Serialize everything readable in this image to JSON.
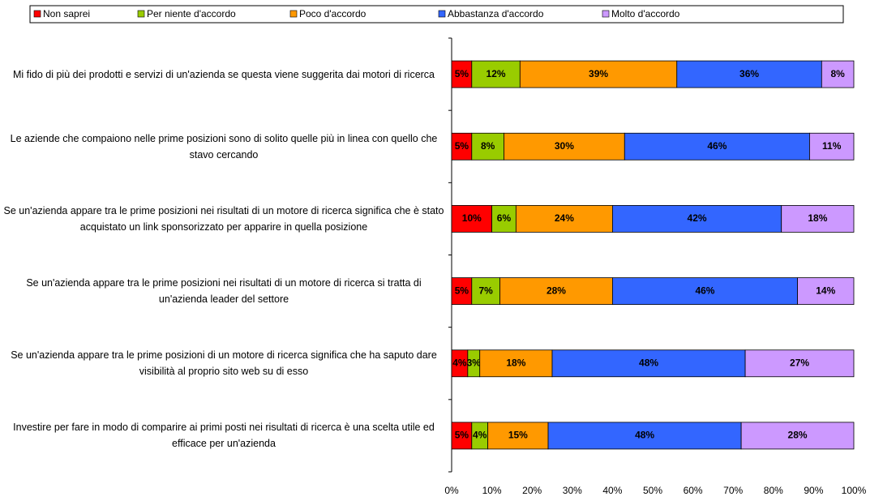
{
  "chart_data": {
    "type": "stacked-bar-horizontal",
    "categories": [
      "Mi fido di più dei prodotti e servizi di un'azienda se questa viene suggerita dai motori di ricerca",
      "Le aziende che compaiono nelle prime posizioni sono di solito quelle più in linea con quello che stavo cercando",
      "Se un'azienda appare tra le prime posizioni nei risultati di un motore di ricerca significa che è stato acquistato un link sponsorizzato per apparire in quella posizione",
      "Se un'azienda appare tra le prime posizioni nei risultati di un motore di ricerca si tratta di un'azienda leader del settore",
      "Se un'azienda appare tra le prime posizioni di un motore di ricerca significa che ha saputo dare visibilità al proprio sito web su di esso",
      "Investire per fare in modo di comparire ai primi posti nei risultati di ricerca è una scelta utile ed efficace per un'azienda"
    ],
    "series": [
      {
        "name": "Non saprei",
        "color": "#ff0000",
        "values": [
          5,
          5,
          10,
          5,
          4,
          5
        ],
        "value_labels": [
          "5%",
          "5%",
          "10%",
          "5%",
          "4%",
          "5%"
        ]
      },
      {
        "name": "Per niente d'accordo",
        "color": "#99cc00",
        "values": [
          12,
          8,
          6,
          7,
          3,
          4
        ],
        "value_labels": [
          "12%",
          "8%",
          "6%",
          "7%",
          "3%",
          "4%"
        ]
      },
      {
        "name": "Poco d'accordo",
        "color": "#ff9900",
        "values": [
          39,
          30,
          24,
          28,
          18,
          15
        ],
        "value_labels": [
          "39%",
          "30%",
          "24%",
          "28%",
          "18%",
          "15%"
        ]
      },
      {
        "name": "Abbastanza d'accordo",
        "color": "#3366ff",
        "values": [
          36,
          46,
          42,
          46,
          48,
          48
        ],
        "value_labels": [
          "36%",
          "46%",
          "42%",
          "46%",
          "48%",
          "48%"
        ]
      },
      {
        "name": "Molto d'accordo",
        "color": "#cc99ff",
        "values": [
          8,
          11,
          18,
          14,
          27,
          28
        ],
        "value_labels": [
          "8%",
          "11%",
          "18%",
          "14%",
          "27%",
          "28%"
        ]
      }
    ],
    "xlim": [
      0,
      100
    ],
    "xticks": [
      {
        "value": 0,
        "label": "0%"
      },
      {
        "value": 10,
        "label": "10%"
      },
      {
        "value": 20,
        "label": "20%"
      },
      {
        "value": 30,
        "label": "30%"
      },
      {
        "value": 40,
        "label": "40%"
      },
      {
        "value": 50,
        "label": "50%"
      },
      {
        "value": 60,
        "label": "60%"
      },
      {
        "value": 70,
        "label": "70%"
      },
      {
        "value": 80,
        "label": "80%"
      },
      {
        "value": 90,
        "label": "90%"
      },
      {
        "value": 100,
        "label": "100%"
      }
    ],
    "legend": "top"
  }
}
